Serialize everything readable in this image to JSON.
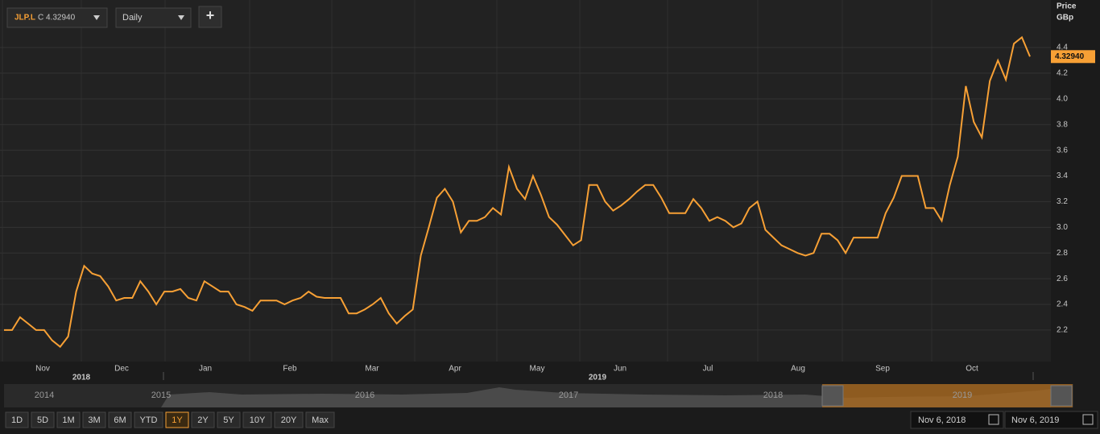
{
  "chart_data": {
    "type": "line",
    "color": "#f7a035",
    "ticker": "JLP.L",
    "close_label": "C 4.32940",
    "interval": "Daily",
    "add_button": "+",
    "y_axis_title": "Price",
    "y_axis_unit": "GBp",
    "last_label": "4.32940",
    "ylim": [
      1.955,
      4.77
    ],
    "yticks": [
      2.2,
      2.4,
      2.6,
      2.8,
      {
        "value": 3.0,
        "label": "3.0"
      },
      3.2,
      3.4,
      3.6,
      3.8,
      {
        "value": 4.0,
        "label": "4.0"
      },
      4.2,
      4.4
    ],
    "grid": true,
    "x_tick_labels": [
      "Nov",
      "Dec",
      "Jan",
      "Feb",
      "Mar",
      "Apr",
      "May",
      "Jun",
      "Jul",
      "Aug",
      "Sep",
      "Oct"
    ],
    "x_year_labels": [
      "2018",
      "2019"
    ],
    "values": [
      2.2,
      2.2,
      2.3,
      2.25,
      2.2,
      2.2,
      2.12,
      2.07,
      2.15,
      2.5,
      2.7,
      2.64,
      2.62,
      2.54,
      2.43,
      2.45,
      2.45,
      2.58,
      2.5,
      2.4,
      2.5,
      2.5,
      2.52,
      2.45,
      2.43,
      2.58,
      2.54,
      2.5,
      2.5,
      2.4,
      2.38,
      2.35,
      2.43,
      2.43,
      2.43,
      2.4,
      2.43,
      2.45,
      2.5,
      2.46,
      2.45,
      2.45,
      2.45,
      2.33,
      2.33,
      2.36,
      2.4,
      2.45,
      2.33,
      2.25,
      2.31,
      2.36,
      2.78,
      3.0,
      3.23,
      3.3,
      3.2,
      2.96,
      3.05,
      3.05,
      3.08,
      3.15,
      3.1,
      3.47,
      3.3,
      3.22,
      3.4,
      3.25,
      3.08,
      3.02,
      2.94,
      2.86,
      2.9,
      3.33,
      3.33,
      3.2,
      3.13,
      3.17,
      3.22,
      3.28,
      3.33,
      3.33,
      3.23,
      3.11,
      3.11,
      3.11,
      3.22,
      3.15,
      3.05,
      3.08,
      3.05,
      3.0,
      3.03,
      3.15,
      3.2,
      2.98,
      2.92,
      2.86,
      2.83,
      2.8,
      2.78,
      2.8,
      2.95,
      2.95,
      2.9,
      2.8,
      2.92,
      2.92,
      2.92,
      2.92,
      3.11,
      3.23,
      3.4,
      3.4,
      3.4,
      3.15,
      3.15,
      3.05,
      3.33,
      3.55,
      4.1,
      3.82,
      3.7,
      4.14,
      4.3,
      4.15,
      4.43,
      4.48,
      4.3294
    ],
    "navigator_years": [
      "2014",
      "2015",
      "2016",
      "2017",
      "2018",
      "2019"
    ],
    "range_buttons": [
      "1D",
      "5D",
      "1M",
      "3M",
      "6M",
      "YTD",
      "1Y",
      "2Y",
      "5Y",
      "10Y",
      "20Y",
      "Max"
    ],
    "selected_range": "1Y",
    "start_date": "Nov 6, 2018",
    "end_date": "Nov 6, 2019"
  }
}
